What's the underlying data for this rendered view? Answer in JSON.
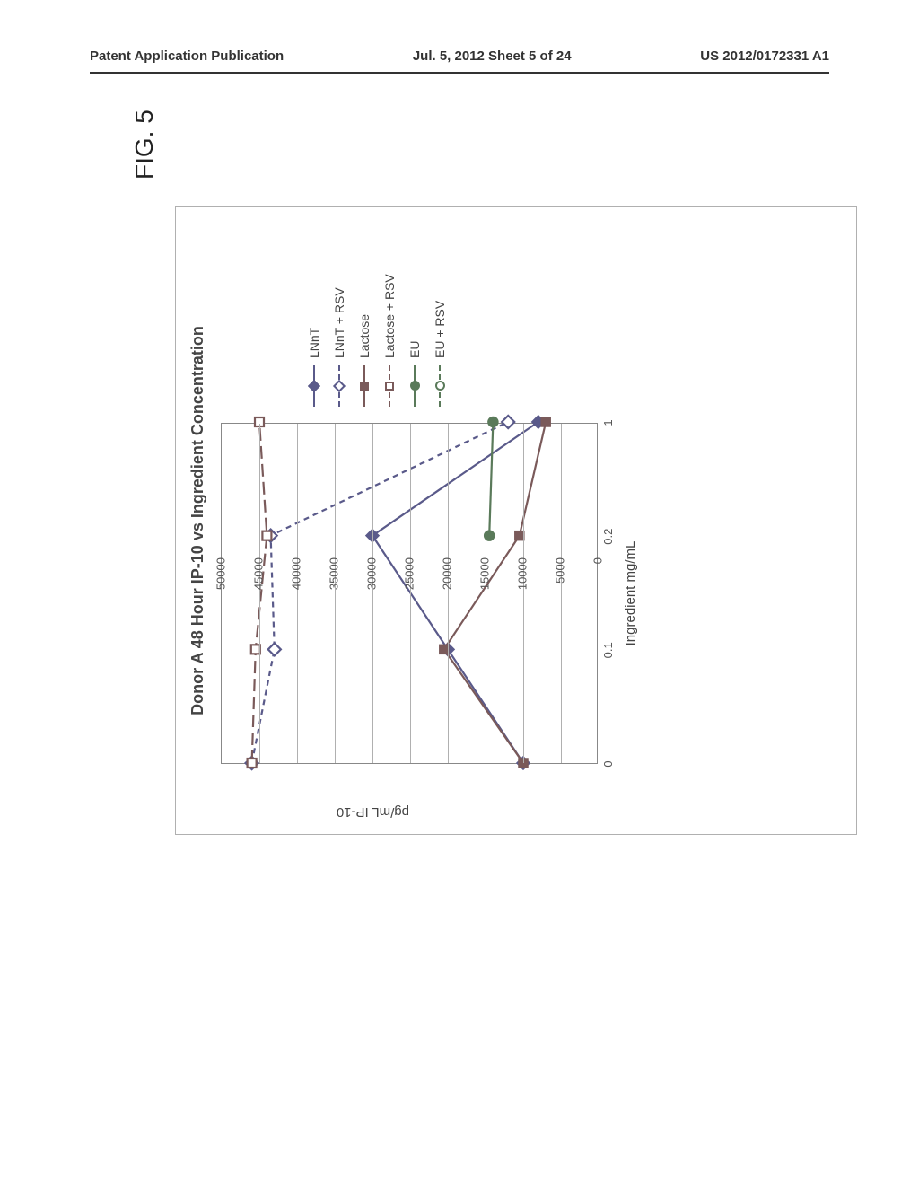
{
  "header": {
    "left": "Patent Application Publication",
    "center": "Jul. 5, 2012   Sheet 5 of 24",
    "right": "US 2012/0172331 A1"
  },
  "figure_label": "FIG. 5",
  "chart": {
    "type": "line",
    "title": "Donor A 48 Hour IP-10 vs Ingredient Concentration",
    "xlabel": "Ingredient mg/mL",
    "ylabel": "pg/mL IP-10",
    "ylim": [
      0,
      50000
    ],
    "ytick_step": 5000,
    "yticks": [
      0,
      5000,
      10000,
      15000,
      20000,
      25000,
      30000,
      35000,
      40000,
      45000,
      50000
    ],
    "xvals": [
      0,
      0.1,
      0.2,
      1
    ],
    "xtick_labels": [
      "0",
      "0.1",
      "0.2",
      "1"
    ],
    "grid_color": "#b0b0b0",
    "border_color": "#888888",
    "background_color": "#ffffff",
    "text_color": "#444444",
    "title_fontsize": 18,
    "label_fontsize": 15,
    "tick_fontsize": 13,
    "legend_fontsize": 14,
    "series": [
      {
        "name": "LNnT",
        "marker": "diamond-filled",
        "line": "solid",
        "color": "#5a5a8a",
        "data": [
          [
            0,
            10000
          ],
          [
            0.1,
            20000
          ],
          [
            0.2,
            30000
          ],
          [
            1,
            8000
          ]
        ]
      },
      {
        "name": "LNnT + RSV",
        "marker": "diamond-open",
        "line": "dash",
        "color": "#5a5a8a",
        "data": [
          [
            0,
            46000
          ],
          [
            0.1,
            43000
          ],
          [
            0.2,
            43500
          ],
          [
            1,
            12000
          ]
        ]
      },
      {
        "name": "Lactose",
        "marker": "square-filled",
        "line": "solid",
        "color": "#7a5a5a",
        "data": [
          [
            0,
            10000
          ],
          [
            0.1,
            20500
          ],
          [
            0.2,
            10500
          ],
          [
            1,
            7000
          ]
        ]
      },
      {
        "name": "Lactose + RSV",
        "marker": "square-open",
        "line": "longdash",
        "color": "#7a5a5a",
        "data": [
          [
            0,
            46000
          ],
          [
            0.1,
            45500
          ],
          [
            0.2,
            44000
          ],
          [
            1,
            45000
          ]
        ]
      },
      {
        "name": "EU",
        "marker": "circle-filled",
        "line": "solid",
        "color": "#5a7a5a",
        "data": [
          [
            0.2,
            14500
          ],
          [
            1,
            14000
          ]
        ]
      },
      {
        "name": "EU + RSV",
        "marker": "circle-open",
        "line": "dash",
        "color": "#5a7a5a",
        "data": []
      }
    ],
    "legend_position": "right"
  }
}
